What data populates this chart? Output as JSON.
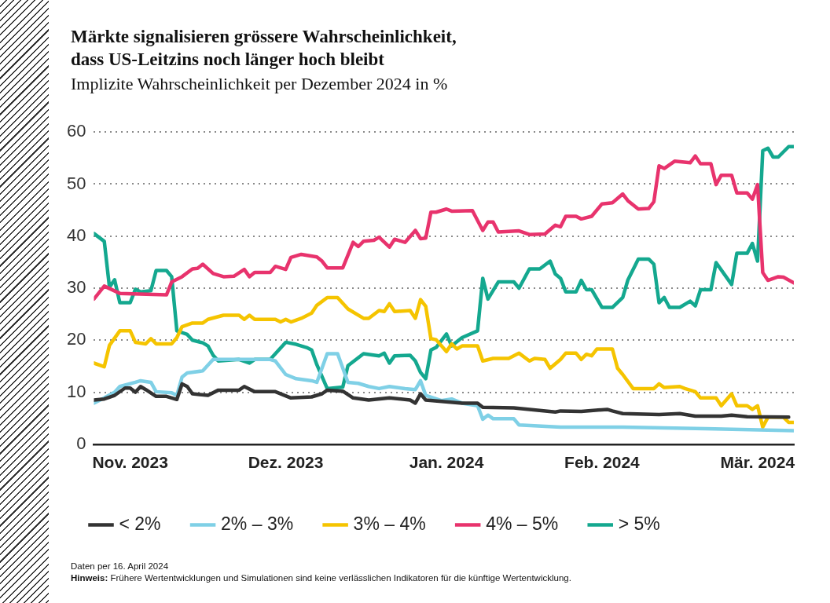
{
  "chart_data": {
    "type": "line",
    "title": "Märkte signalisieren grössere Wahrscheinlichkeit,\ndass US-Leitzins noch länger hoch bleibt",
    "subtitle": "Implizite Wahrscheinlichkeit per Dezember 2024 in %",
    "annotations": [
      "Daten per 16. April 2024",
      "Hinweis:",
      "Frühere Wertentwicklungen und Simulationen sind keine verlässlichen Indikatoren für die künftige Wertentwicklung."
    ],
    "xlim": [
      "2023-11-01",
      "2024-03-15"
    ],
    "xticks": [
      {
        "value": "2023-11-08",
        "label": "Nov. 2023"
      },
      {
        "value": "2023-12-08",
        "label": "Dez. 2023"
      },
      {
        "value": "2024-01-08",
        "label": "Jan. 2024"
      },
      {
        "value": "2024-02-07",
        "label": "Feb. 2024"
      },
      {
        "value": "2024-03-08",
        "label": "Mär. 2024"
      }
    ],
    "ylim": [
      0,
      60
    ],
    "yticks": [
      0,
      10,
      20,
      30,
      40,
      50,
      60
    ],
    "grid": "y",
    "legend": "bottom",
    "marker": "none",
    "line_style": "solid",
    "series": [
      {
        "name": "< 2%",
        "color": "#333333",
        "x": [
          "2023-11-01",
          "2023-11-03",
          "2023-11-05",
          "2023-11-07",
          "2023-11-08",
          "2023-11-09",
          "2023-11-10",
          "2023-11-11",
          "2023-11-13",
          "2023-11-15",
          "2023-11-17",
          "2023-11-18",
          "2023-11-19",
          "2023-11-20",
          "2023-11-23",
          "2023-11-25",
          "2023-11-29",
          "2023-11-30",
          "2023-12-02",
          "2023-12-06",
          "2023-12-09",
          "2023-12-13",
          "2023-12-15",
          "2023-12-16",
          "2023-12-19",
          "2023-12-21",
          "2023-12-24",
          "2023-12-28",
          "2024-01-01",
          "2024-01-02",
          "2024-01-03",
          "2024-01-04",
          "2024-01-11",
          "2024-01-14",
          "2024-01-15",
          "2024-01-21",
          "2024-01-29",
          "2024-01-30",
          "2024-02-03",
          "2024-02-08",
          "2024-02-09",
          "2024-02-11",
          "2024-02-18",
          "2024-02-22",
          "2024-02-25",
          "2024-03-01",
          "2024-03-03",
          "2024-03-06",
          "2024-03-14"
        ],
        "values": [
          8.5,
          8.7,
          9.4,
          10.8,
          10.8,
          10,
          11.1,
          10.5,
          9.2,
          9.2,
          8.6,
          11.6,
          11.1,
          9.7,
          9.4,
          10.4,
          10.4,
          11.1,
          10.1,
          10.1,
          8.9,
          9.1,
          9.7,
          10.4,
          10.2,
          8.9,
          8.5,
          8.9,
          8.5,
          7.9,
          9.7,
          8.5,
          7.9,
          7.9,
          7.1,
          7,
          6.2,
          6.4,
          6.3,
          6.7,
          6.4,
          5.9,
          5.7,
          5.9,
          5.4,
          5.4,
          5.6,
          5.3,
          5.2
        ]
      },
      {
        "name": "2% – 3%",
        "color": "#7fd0e6",
        "x": [
          "2023-11-01",
          "2023-11-03",
          "2023-11-05",
          "2023-11-06",
          "2023-11-09",
          "2023-11-10",
          "2023-11-12",
          "2023-11-13",
          "2023-11-16",
          "2023-11-17",
          "2023-11-18",
          "2023-11-19",
          "2023-11-22",
          "2023-11-24",
          "2023-12-05",
          "2023-12-06",
          "2023-12-08",
          "2023-12-10",
          "2023-12-13",
          "2023-12-14",
          "2023-12-16",
          "2023-12-18",
          "2023-12-20",
          "2023-12-22",
          "2023-12-24",
          "2023-12-26",
          "2023-12-28",
          "2023-12-31",
          "2024-01-02",
          "2024-01-03",
          "2024-01-04",
          "2024-01-07",
          "2024-01-09",
          "2024-01-11",
          "2024-01-14",
          "2024-01-15",
          "2024-01-16",
          "2024-01-17",
          "2024-01-21",
          "2024-01-22",
          "2024-01-30",
          "2024-02-11",
          "2024-02-27",
          "2024-03-15"
        ],
        "values": [
          7.9,
          8.9,
          10,
          11.1,
          11.9,
          12.2,
          11.9,
          10.1,
          9.9,
          9.4,
          12.9,
          13.7,
          14.1,
          16.3,
          16.3,
          16,
          13.4,
          12.6,
          12.2,
          11.9,
          17.4,
          17.4,
          11.9,
          11.7,
          11.1,
          10.7,
          11.1,
          10.7,
          10.5,
          12.2,
          9.4,
          8.4,
          8.7,
          7.9,
          7.4,
          4.8,
          5.6,
          4.9,
          4.9,
          3.7,
          3.3,
          3.3,
          3,
          2.6
        ]
      },
      {
        "name": "3% – 4%",
        "color": "#f5c400",
        "x": [
          "2023-11-01",
          "2023-11-03",
          "2023-11-04",
          "2023-11-06",
          "2023-11-08",
          "2023-11-09",
          "2023-11-11",
          "2023-11-12",
          "2023-11-13",
          "2023-11-16",
          "2023-11-17",
          "2023-11-18",
          "2023-11-20",
          "2023-11-22",
          "2023-11-23",
          "2023-11-26",
          "2023-11-29",
          "2023-11-30",
          "2023-12-01",
          "2023-12-02",
          "2023-12-06",
          "2023-12-07",
          "2023-12-08",
          "2023-12-09",
          "2023-12-11",
          "2023-12-13",
          "2023-12-14",
          "2023-12-16",
          "2023-12-18",
          "2023-12-20",
          "2023-12-23",
          "2023-12-24",
          "2023-12-26",
          "2023-12-27",
          "2023-12-28",
          "2023-12-29",
          "2024-01-01",
          "2024-01-02",
          "2024-01-03",
          "2024-01-04",
          "2024-01-05",
          "2024-01-06",
          "2024-01-08",
          "2024-01-09",
          "2024-01-10",
          "2024-01-11",
          "2024-01-14",
          "2024-01-15",
          "2024-01-17",
          "2024-01-20",
          "2024-01-22",
          "2024-01-24",
          "2024-01-25",
          "2024-01-27",
          "2024-01-28",
          "2024-01-30",
          "2024-01-31",
          "2024-02-02",
          "2024-02-03",
          "2024-02-04",
          "2024-02-05",
          "2024-02-06",
          "2024-02-09",
          "2024-02-10",
          "2024-02-11",
          "2024-02-13",
          "2024-02-17",
          "2024-02-18",
          "2024-02-19",
          "2024-02-22",
          "2024-02-23",
          "2024-02-25",
          "2024-02-26",
          "2024-02-29",
          "2024-03-01",
          "2024-03-03",
          "2024-03-04",
          "2024-03-06",
          "2024-03-07",
          "2024-03-08",
          "2024-03-09",
          "2024-03-10",
          "2024-03-13",
          "2024-03-14",
          "2024-03-15"
        ],
        "values": [
          15.6,
          14.9,
          19,
          21.8,
          21.8,
          19.6,
          19.3,
          20.3,
          19.3,
          19.3,
          20.5,
          22.6,
          23.3,
          23.3,
          24,
          24.8,
          24.8,
          24,
          24.8,
          24,
          24,
          23.5,
          24,
          23.5,
          24.2,
          25.2,
          26.7,
          28.2,
          28.2,
          26,
          24.2,
          24.2,
          25.7,
          25.5,
          27,
          25.5,
          25.7,
          24.2,
          27.8,
          26.5,
          20.3,
          20.1,
          17.8,
          19.3,
          18.3,
          18.9,
          18.9,
          16,
          16.5,
          16.5,
          17.5,
          16,
          16.5,
          16.3,
          14.6,
          16.3,
          17.5,
          17.5,
          16.3,
          17.3,
          17,
          18.3,
          18.3,
          14.6,
          13.4,
          10.7,
          10.7,
          11.6,
          10.9,
          11.1,
          10.7,
          10.1,
          8.9,
          8.9,
          7.4,
          9.7,
          7.4,
          7.4,
          6.7,
          7.4,
          3.3,
          5.2,
          5.2,
          4.2,
          4.2
        ]
      },
      {
        "name": "4% – 5%",
        "color": "#e8336d",
        "x": [
          "2023-11-01",
          "2023-11-03",
          "2023-11-06",
          "2023-11-15",
          "2023-11-16",
          "2023-11-18",
          "2023-11-20",
          "2023-11-21",
          "2023-11-22",
          "2023-11-24",
          "2023-11-26",
          "2023-11-28",
          "2023-11-30",
          "2023-12-01",
          "2023-12-02",
          "2023-12-05",
          "2023-12-06",
          "2023-12-08",
          "2023-12-09",
          "2023-12-11",
          "2023-12-14",
          "2023-12-15",
          "2023-12-16",
          "2023-12-19",
          "2023-12-21",
          "2023-12-22",
          "2023-12-23",
          "2023-12-25",
          "2023-12-26",
          "2023-12-28",
          "2023-12-29",
          "2023-12-31",
          "2024-01-02",
          "2024-01-03",
          "2024-01-04",
          "2024-01-05",
          "2024-01-06",
          "2024-01-08",
          "2024-01-09",
          "2024-01-13",
          "2024-01-15",
          "2024-01-16",
          "2024-01-17",
          "2024-01-18",
          "2024-01-22",
          "2024-01-24",
          "2024-01-27",
          "2024-01-29",
          "2024-01-30",
          "2024-01-31",
          "2024-02-02",
          "2024-02-03",
          "2024-02-05",
          "2024-02-07",
          "2024-02-09",
          "2024-02-11",
          "2024-02-12",
          "2024-02-14",
          "2024-02-16",
          "2024-02-17",
          "2024-02-18",
          "2024-02-19",
          "2024-02-21",
          "2024-02-24",
          "2024-02-25",
          "2024-02-26",
          "2024-02-28",
          "2024-02-29",
          "2024-03-01",
          "2024-03-03",
          "2024-03-04",
          "2024-03-06",
          "2024-03-07",
          "2024-03-08",
          "2024-03-09",
          "2024-03-10",
          "2024-03-12",
          "2024-03-13",
          "2024-03-15"
        ],
        "values": [
          27.9,
          30.4,
          29,
          28.7,
          31.2,
          32.2,
          33.7,
          33.8,
          34.6,
          32.8,
          32.2,
          32.3,
          33.6,
          32.2,
          33,
          33,
          34.2,
          33.6,
          35.9,
          36.5,
          36,
          35.2,
          33.9,
          33.9,
          38.8,
          38,
          39,
          39.2,
          39.8,
          37.9,
          39.4,
          38.8,
          41.1,
          39.5,
          39.6,
          44.6,
          44.6,
          45.2,
          44.8,
          44.9,
          41.1,
          42.7,
          42.7,
          40.8,
          41,
          40.3,
          40.4,
          42.1,
          41.8,
          43.8,
          43.8,
          43.3,
          43.8,
          46.2,
          46.4,
          48.1,
          46.8,
          45.2,
          45.3,
          46.6,
          53.5,
          53,
          54.4,
          54.1,
          55.4,
          53.9,
          53.9,
          49.9,
          51.7,
          51.7,
          48.3,
          48.3,
          47.1,
          49.9,
          33,
          31.5,
          32.2,
          32.1,
          31
        ]
      },
      {
        "name": "> 5%",
        "color": "#14a88f",
        "x": [
          "2023-11-01",
          "2023-11-03",
          "2023-11-04",
          "2023-11-05",
          "2023-11-06",
          "2023-11-08",
          "2023-11-09",
          "2023-11-10",
          "2023-11-12",
          "2023-11-13",
          "2023-11-15",
          "2023-11-16",
          "2023-11-17",
          "2023-11-19",
          "2023-11-20",
          "2023-11-22",
          "2023-11-23",
          "2023-11-24",
          "2023-11-25",
          "2023-11-29",
          "2023-12-01",
          "2023-12-02",
          "2023-12-05",
          "2023-12-08",
          "2023-12-10",
          "2023-12-12",
          "2023-12-13",
          "2023-12-14",
          "2023-12-16",
          "2023-12-19",
          "2023-12-20",
          "2023-12-23",
          "2023-12-26",
          "2023-12-27",
          "2023-12-28",
          "2023-12-29",
          "2024-01-01",
          "2024-01-02",
          "2024-01-03",
          "2024-01-04",
          "2024-01-05",
          "2024-01-06",
          "2024-01-08",
          "2024-01-09",
          "2024-01-11",
          "2024-01-14",
          "2024-01-15",
          "2024-01-16",
          "2024-01-18",
          "2024-01-21",
          "2024-01-22",
          "2024-01-24",
          "2024-01-26",
          "2024-01-28",
          "2024-01-29",
          "2024-01-30",
          "2024-01-31",
          "2024-02-02",
          "2024-02-03",
          "2024-02-04",
          "2024-02-05",
          "2024-02-07",
          "2024-02-09",
          "2024-02-11",
          "2024-02-12",
          "2024-02-14",
          "2024-02-16",
          "2024-02-17",
          "2024-02-18",
          "2024-02-19",
          "2024-02-20",
          "2024-02-22",
          "2024-02-24",
          "2024-02-25",
          "2024-02-26",
          "2024-02-28",
          "2024-02-29",
          "2024-03-03",
          "2024-03-04",
          "2024-03-06",
          "2024-03-07",
          "2024-03-08",
          "2024-03-09",
          "2024-03-10",
          "2024-03-11",
          "2024-03-12",
          "2024-03-14",
          "2024-03-15"
        ],
        "values": [
          40.5,
          39,
          30.2,
          31.6,
          27.2,
          27.2,
          29.8,
          29.3,
          29.5,
          33.4,
          33.4,
          32.2,
          21.8,
          21.1,
          20,
          19.5,
          18.9,
          17.1,
          16,
          16.3,
          15.6,
          16.3,
          16.3,
          19.6,
          19.2,
          18.6,
          18.1,
          15.3,
          10.7,
          11,
          15.1,
          17.4,
          17,
          17.5,
          15.6,
          17,
          17.1,
          16,
          13.8,
          12.6,
          18.1,
          18.6,
          21.2,
          18.9,
          20.5,
          21.8,
          31.9,
          27.9,
          31.2,
          31.2,
          30,
          33.7,
          33.7,
          35.2,
          32.7,
          31.9,
          29.3,
          29.3,
          31.5,
          29.7,
          29.7,
          26.3,
          26.3,
          28.2,
          31.6,
          35.6,
          35.6,
          34.6,
          27.2,
          28.2,
          26.3,
          26.3,
          27.5,
          26.6,
          29.7,
          29.7,
          34.9,
          30.7,
          36.7,
          36.7,
          38.6,
          35.2,
          56.4,
          56.9,
          55.2,
          55.2,
          57.2,
          57.2
        ]
      }
    ]
  }
}
